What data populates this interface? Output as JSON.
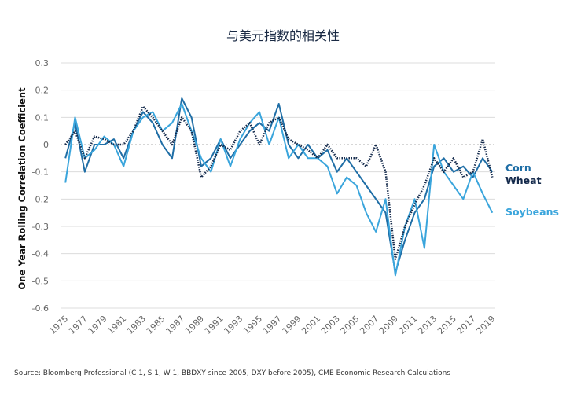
{
  "chart_data": {
    "type": "line",
    "title": "与美元指数的相关性",
    "ylabel": "One Year Rolling Correlation Coefficient",
    "xlabel": "",
    "ylim": [
      -0.6,
      0.3
    ],
    "yticks": [
      "0.3",
      "0.2",
      "0.1",
      "0",
      "-0.1",
      "-0.2",
      "-0.3",
      "-0.4",
      "-0.5",
      "-0.6"
    ],
    "xlim": [
      1974.5,
      2019.3
    ],
    "xticks": [
      "1975",
      "1977",
      "1979",
      "1981",
      "1983",
      "1985",
      "1987",
      "1989",
      "1991",
      "1993",
      "1995",
      "1997",
      "1999",
      "2001",
      "2003",
      "2005",
      "2007",
      "2009",
      "2011",
      "2013",
      "2015",
      "2017",
      "2019"
    ],
    "grid": true,
    "legend": "right",
    "x": [
      1975,
      1976,
      1977,
      1978,
      1979,
      1980,
      1981,
      1982,
      1983,
      1984,
      1985,
      1986,
      1987,
      1988,
      1989,
      1990,
      1991,
      1992,
      1993,
      1994,
      1995,
      1996,
      1997,
      1998,
      1999,
      2000,
      2001,
      2002,
      2003,
      2004,
      2005,
      2006,
      2007,
      2008,
      2009,
      2010,
      2011,
      2012,
      2013,
      2014,
      2015,
      2016,
      2017,
      2018,
      2019
    ],
    "series": [
      {
        "name": "Corn",
        "color": "#1f6ea6",
        "style": "solid",
        "values": [
          -0.05,
          0.08,
          -0.1,
          0.0,
          0.0,
          0.02,
          -0.05,
          0.05,
          0.12,
          0.08,
          0.0,
          -0.05,
          0.17,
          0.1,
          -0.08,
          -0.05,
          0.02,
          -0.05,
          0.0,
          0.05,
          0.08,
          0.05,
          0.15,
          0.0,
          -0.05,
          0.0,
          -0.05,
          -0.02,
          -0.1,
          -0.05,
          -0.1,
          -0.15,
          -0.2,
          -0.25,
          -0.47,
          -0.35,
          -0.25,
          -0.2,
          -0.08,
          -0.05,
          -0.1,
          -0.08,
          -0.12,
          -0.05,
          -0.1
        ]
      },
      {
        "name": "Wheat",
        "color": "#13294b",
        "style": "dotted",
        "values": [
          0.0,
          0.05,
          -0.05,
          0.03,
          0.02,
          0.0,
          0.0,
          0.05,
          0.14,
          0.1,
          0.05,
          0.0,
          0.1,
          0.05,
          -0.12,
          -0.08,
          0.0,
          -0.02,
          0.05,
          0.08,
          0.0,
          0.08,
          0.1,
          0.02,
          0.0,
          -0.02,
          -0.05,
          0.0,
          -0.05,
          -0.05,
          -0.05,
          -0.08,
          0.0,
          -0.1,
          -0.42,
          -0.3,
          -0.22,
          -0.15,
          -0.05,
          -0.1,
          -0.05,
          -0.12,
          -0.1,
          0.02,
          -0.12
        ]
      },
      {
        "name": "Soybeans",
        "color": "#3aa5dc",
        "style": "solid",
        "values": [
          -0.14,
          0.1,
          -0.05,
          -0.02,
          0.03,
          0.0,
          -0.08,
          0.05,
          0.1,
          0.12,
          0.05,
          0.08,
          0.15,
          0.05,
          -0.05,
          -0.1,
          0.02,
          -0.08,
          0.02,
          0.08,
          0.12,
          0.0,
          0.1,
          -0.05,
          0.0,
          -0.05,
          -0.05,
          -0.08,
          -0.18,
          -0.12,
          -0.15,
          -0.25,
          -0.32,
          -0.2,
          -0.48,
          -0.3,
          -0.2,
          -0.38,
          0.0,
          -0.1,
          -0.15,
          -0.2,
          -0.1,
          -0.18,
          -0.25
        ]
      }
    ]
  },
  "source": "Source: Bloomberg Professional (C 1, S 1, W 1, BBDXY since 2005, DXY before 2005), CME Economic Research Calculations"
}
